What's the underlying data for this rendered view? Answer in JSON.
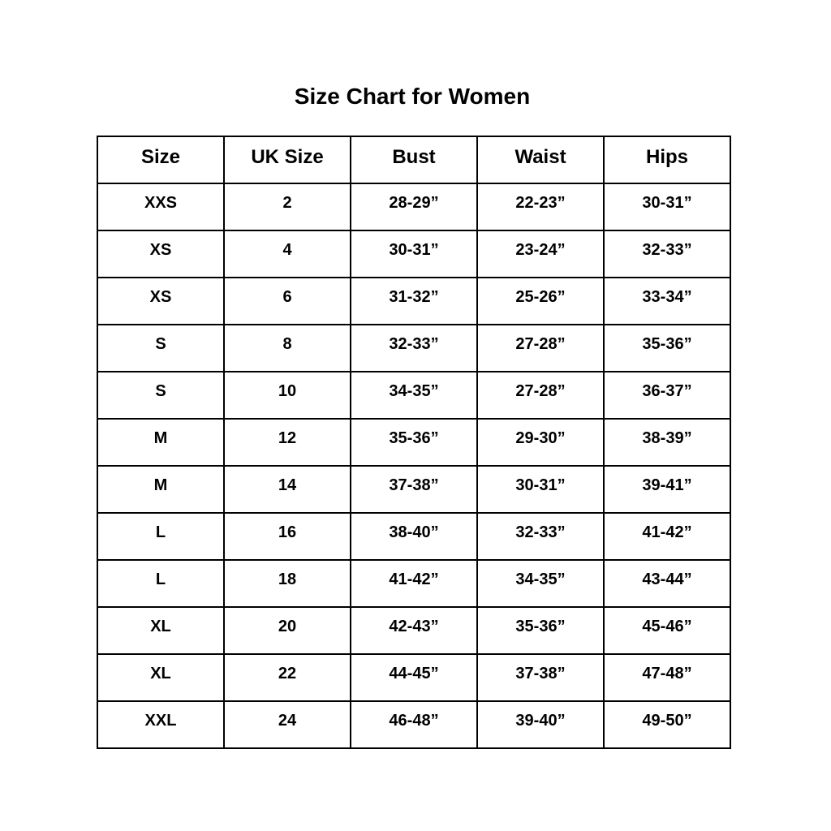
{
  "title": "Size Chart for Women",
  "table": {
    "headers": [
      "Size",
      "UK Size",
      "Bust",
      "Waist",
      "Hips"
    ],
    "rows": [
      [
        "XXS",
        "2",
        "28-29”",
        "22-23”",
        "30-31”"
      ],
      [
        "XS",
        "4",
        "30-31”",
        "23-24”",
        "32-33”"
      ],
      [
        "XS",
        "6",
        "31-32”",
        "25-26”",
        "33-34”"
      ],
      [
        "S",
        "8",
        "32-33”",
        "27-28”",
        "35-36”"
      ],
      [
        "S",
        "10",
        "34-35”",
        "27-28”",
        "36-37”"
      ],
      [
        "M",
        "12",
        "35-36”",
        "29-30”",
        "38-39”"
      ],
      [
        "M",
        "14",
        "37-38”",
        "30-31”",
        "39-41”"
      ],
      [
        "L",
        "16",
        "38-40”",
        "32-33”",
        "41-42”"
      ],
      [
        "L",
        "18",
        "41-42”",
        "34-35”",
        "43-44”"
      ],
      [
        "XL",
        "20",
        "42-43”",
        "35-36”",
        "45-46”"
      ],
      [
        "XL",
        "22",
        "44-45”",
        "37-38”",
        "47-48”"
      ],
      [
        "XXL",
        "24",
        "46-48”",
        "39-40”",
        "49-50”"
      ]
    ]
  }
}
